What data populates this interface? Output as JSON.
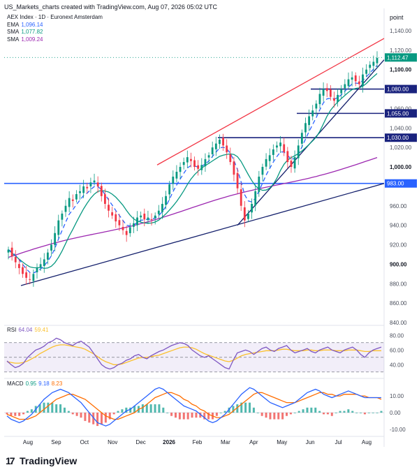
{
  "header": {
    "created": "US_Markets_charts created with TradingView.com, Aug 07, 2026 05:02 UTC"
  },
  "brand": "TradingView",
  "colors": {
    "up": "#089981",
    "down": "#f23645",
    "ema": "#2962ff",
    "sma50": "#089981",
    "sma200": "#9c27b0",
    "trend_red": "#f23645",
    "trend_navy": "#131f6b",
    "hline_dark": "#1a237e",
    "hline_blue": "#2962ff",
    "rsi": "#7e57c2",
    "rsi_ma": "#fbc02d",
    "macd": "#2962ff",
    "signal": "#ff6d00"
  },
  "chart_data": [
    {
      "type": "candlestick",
      "title": "AEX Index · 1D · Euronext Amsterdam",
      "price_label": "point",
      "indicators": [
        {
          "name": "EMA",
          "value": "1,096.14",
          "color": "#2962ff"
        },
        {
          "name": "SMA",
          "value": "1,077.82",
          "color": "#089981"
        },
        {
          "name": "SMA",
          "value": "1,009.24",
          "color": "#9c27b0"
        }
      ],
      "x_axis_labels": [
        "Aug",
        "Sep",
        "Oct",
        "Nov",
        "Dec",
        "2026",
        "Feb",
        "Mar",
        "Apr",
        "May",
        "Jun",
        "Jul",
        "Aug"
      ],
      "y_axis_labels": [
        "1,140.00",
        "1,120.00",
        "1,100.00",
        "1,060.00",
        "1,040.00",
        "1,020.00",
        "1,000.00",
        "960.00",
        "940.00",
        "920.00",
        "900.00",
        "880.00",
        "860.00",
        "840.00"
      ],
      "ylim": [
        840,
        1150
      ],
      "last_price": "1,112.47",
      "horizontal_levels": [
        {
          "label": "1,080.00",
          "value": 1080
        },
        {
          "label": "1,055.00",
          "value": 1055
        },
        {
          "label": "1,030.00",
          "value": 1030
        },
        {
          "label": "983.00",
          "value": 983
        }
      ],
      "closes": [
        915,
        908,
        902,
        896,
        890,
        886,
        884,
        890,
        896,
        900,
        905,
        912,
        920,
        932,
        945,
        952,
        960,
        968,
        965,
        972,
        975,
        980,
        978,
        984,
        986,
        980,
        970,
        962,
        955,
        950,
        944,
        940,
        935,
        930,
        938,
        942,
        948,
        950,
        946,
        948,
        946,
        950,
        955,
        962,
        970,
        982,
        990,
        995,
        1000,
        1005,
        1010,
        1006,
        1000,
        998,
        1002,
        1008,
        1012,
        1020,
        1024,
        1028,
        1022,
        1015,
        1005,
        992,
        978,
        960,
        945,
        952,
        962,
        975,
        990,
        1000,
        1008,
        1012,
        1018,
        1022,
        1025,
        1015,
        1005,
        1000,
        1010,
        1022,
        1035,
        1045,
        1052,
        1058,
        1065,
        1075,
        1080,
        1078,
        1072,
        1068,
        1074,
        1080,
        1085,
        1090,
        1092,
        1088,
        1085,
        1095,
        1100,
        1105,
        1108,
        1112
      ]
    },
    {
      "type": "line",
      "title": "RSI",
      "legend": [
        {
          "name": "RSI",
          "value": "64.04"
        },
        {
          "name": "",
          "value": "59.41"
        }
      ],
      "y_axis_labels": [
        "80.00",
        "60.00",
        "40.00"
      ],
      "ylim": [
        25,
        85
      ],
      "rsi_values": [
        45,
        40,
        36,
        38,
        42,
        50,
        55,
        60,
        62,
        65,
        70,
        72,
        76,
        74,
        70,
        68,
        66,
        70,
        72,
        68,
        64,
        56,
        48,
        40,
        36,
        34,
        36,
        40,
        42,
        46,
        48,
        52,
        54,
        50,
        48,
        52,
        55,
        58,
        60,
        63,
        66,
        68,
        70,
        69,
        66,
        60,
        56,
        52,
        50,
        52,
        48,
        44,
        40,
        36,
        34,
        46,
        56,
        58,
        60,
        58,
        54,
        58,
        62,
        64,
        60,
        58,
        62,
        64,
        66,
        60,
        56,
        58,
        60,
        62,
        58,
        56,
        60,
        62,
        64,
        60,
        58,
        56,
        60,
        62,
        64,
        60,
        54,
        50,
        56,
        60,
        62,
        64
      ],
      "rsi_ma_values": [
        44,
        43,
        42,
        42,
        43,
        45,
        48,
        51,
        55,
        58,
        61,
        64,
        66,
        67,
        67,
        66,
        65,
        64,
        63,
        61,
        58,
        55,
        51,
        47,
        44,
        42,
        40,
        40,
        41,
        43,
        45,
        47,
        49,
        50,
        50,
        51,
        52,
        53,
        55,
        57,
        59,
        61,
        63,
        64,
        64,
        63,
        61,
        58,
        55,
        53,
        51,
        49,
        47,
        45,
        44,
        46,
        49,
        52,
        54,
        55,
        56,
        57,
        58,
        59,
        59,
        59,
        60,
        61,
        61,
        60,
        59,
        59,
        59,
        60,
        60,
        59,
        59,
        60,
        60,
        60,
        59,
        59,
        59,
        60,
        60,
        60,
        59,
        58,
        58,
        59,
        59,
        59
      ]
    },
    {
      "type": "line",
      "title": "MACD",
      "legend": [
        {
          "name": "MACD",
          "value": "0.95"
        },
        {
          "name": "",
          "value": "9.18"
        },
        {
          "name": "",
          "value": "8.23"
        }
      ],
      "y_axis_labels": [
        "10.00",
        "0.00",
        "-10.00"
      ],
      "ylim": [
        -13,
        18
      ],
      "macd_values": [
        -2,
        -4,
        -5,
        -6,
        -5,
        -3,
        -1,
        2,
        5,
        8,
        10,
        12,
        13,
        14,
        13,
        12,
        10,
        8,
        6,
        3,
        0,
        -3,
        -6,
        -7,
        -8,
        -7,
        -5,
        -3,
        -1,
        1,
        2,
        4,
        6,
        8,
        10,
        12,
        14,
        15,
        14,
        12,
        10,
        8,
        6,
        4,
        3,
        2,
        1,
        -1,
        -3,
        -5,
        -6,
        -5,
        -3,
        -1,
        2,
        5,
        8,
        11,
        13,
        15,
        14,
        12,
        10,
        8,
        6,
        5,
        4,
        3,
        4,
        5,
        6,
        8,
        10,
        12,
        13,
        14,
        13,
        11,
        10,
        9,
        10,
        11,
        12,
        13,
        12,
        11,
        10,
        9,
        9,
        9,
        9,
        9
      ],
      "signal_values": [
        -1,
        -2,
        -3,
        -4,
        -4,
        -4,
        -3,
        -2,
        0,
        2,
        4,
        6,
        8,
        9,
        10,
        11,
        11,
        10,
        9,
        8,
        6,
        4,
        2,
        0,
        -2,
        -3,
        -4,
        -4,
        -3,
        -2,
        -1,
        0,
        2,
        3,
        5,
        7,
        9,
        10,
        11,
        12,
        12,
        11,
        10,
        8,
        7,
        5,
        4,
        2,
        1,
        -1,
        -2,
        -3,
        -3,
        -2,
        -1,
        1,
        3,
        5,
        7,
        9,
        11,
        12,
        12,
        11,
        10,
        9,
        8,
        7,
        6,
        6,
        6,
        7,
        8,
        9,
        10,
        11,
        12,
        12,
        11,
        11,
        10,
        10,
        11,
        11,
        11,
        11,
        10,
        10,
        9,
        9,
        9,
        8
      ]
    }
  ]
}
